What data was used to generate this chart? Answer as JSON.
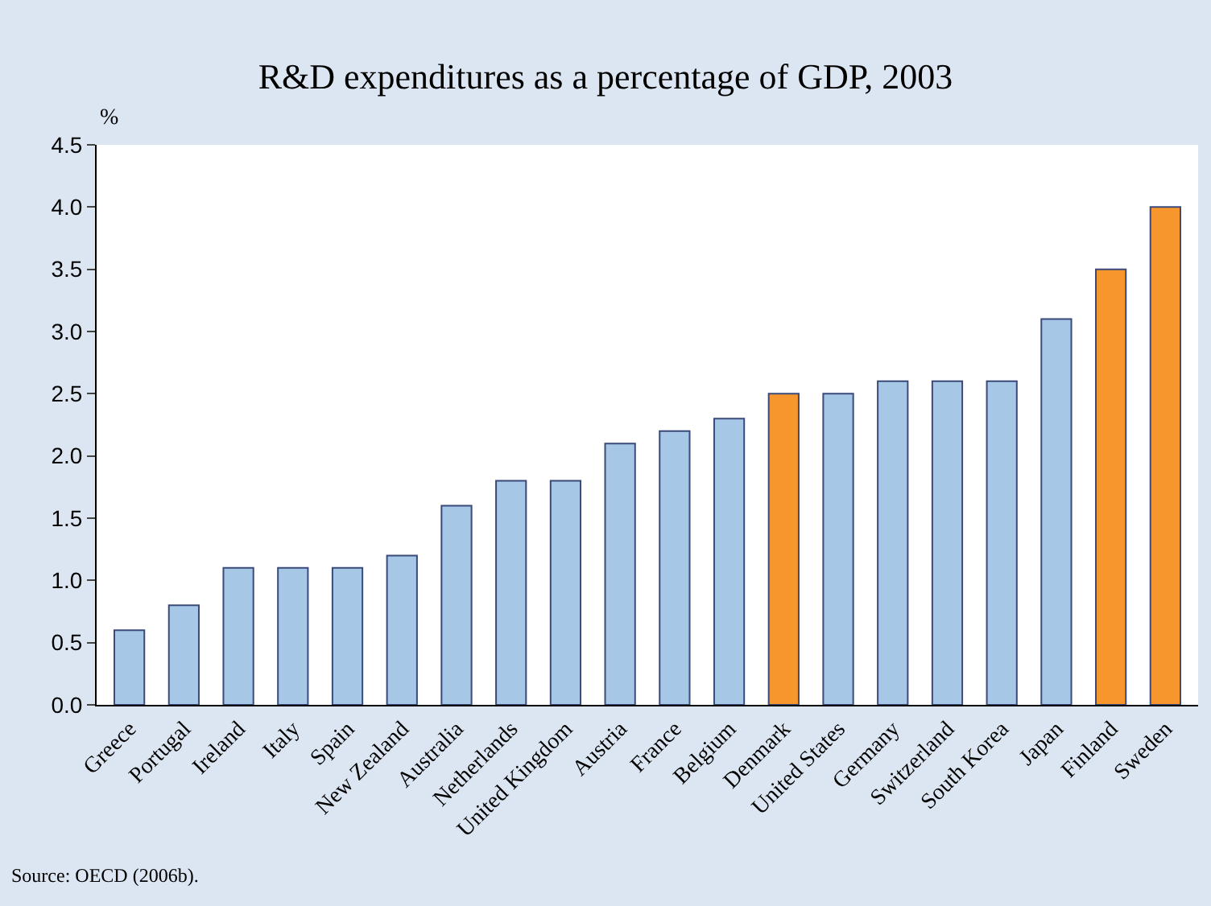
{
  "chart_data": {
    "type": "bar",
    "title": "R&D expenditures as a percentage of GDP, 2003",
    "ylabel": "%",
    "categories": [
      "Greece",
      "Portugal",
      "Ireland",
      "Italy",
      "Spain",
      "New Zealand",
      "Australia",
      "Netherlands",
      "United Kingdom",
      "Austria",
      "France",
      "Belgium",
      "Denmark",
      "United States",
      "Germany",
      "Switzerland",
      "South Korea",
      "Japan",
      "Finland",
      "Sweden"
    ],
    "values": [
      0.6,
      0.8,
      1.1,
      1.1,
      1.1,
      1.2,
      1.6,
      1.8,
      1.8,
      2.1,
      2.2,
      2.3,
      2.5,
      2.5,
      2.6,
      2.6,
      2.6,
      3.1,
      3.5,
      4.0
    ],
    "colors": [
      "#a7c7e7",
      "#a7c7e7",
      "#a7c7e7",
      "#a7c7e7",
      "#a7c7e7",
      "#a7c7e7",
      "#a7c7e7",
      "#a7c7e7",
      "#a7c7e7",
      "#a7c7e7",
      "#a7c7e7",
      "#a7c7e7",
      "#f7962c",
      "#a7c7e7",
      "#a7c7e7",
      "#a7c7e7",
      "#a7c7e7",
      "#a7c7e7",
      "#f7962c",
      "#f7962c"
    ],
    "ylim": [
      0,
      4.5
    ],
    "yticks": [
      {
        "value": 0,
        "label": "0.0"
      },
      {
        "value": 0.5,
        "label": "0.5"
      },
      {
        "value": 1,
        "label": "1.0"
      },
      {
        "value": 1.5,
        "label": "1.5"
      },
      {
        "value": 2,
        "label": "2.0"
      },
      {
        "value": 2.5,
        "label": "2.5"
      },
      {
        "value": 3,
        "label": "3.0"
      },
      {
        "value": 3.5,
        "label": "3.5"
      },
      {
        "value": 4,
        "label": "4.0"
      },
      {
        "value": 4.5,
        "label": "4.5"
      }
    ],
    "grid": false,
    "legend": false,
    "annotations": [
      "Source: OECD (2006b)."
    ]
  }
}
